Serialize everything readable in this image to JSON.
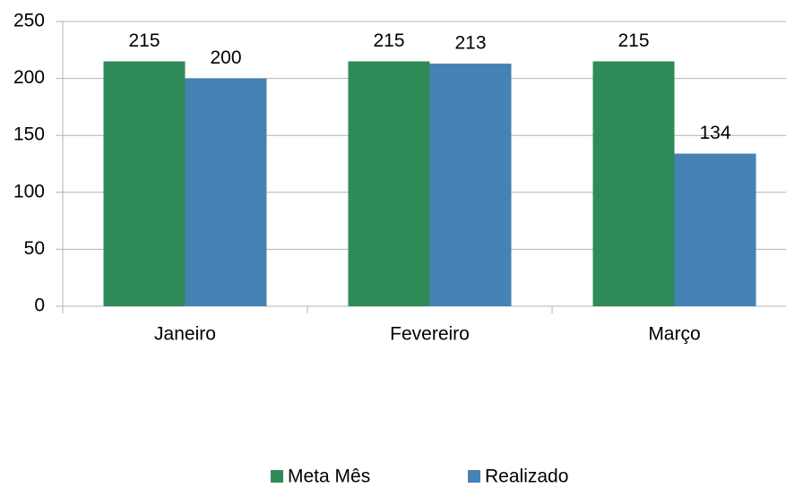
{
  "chart_data": {
    "type": "bar",
    "categories": [
      "Janeiro",
      "Fevereiro",
      "Março"
    ],
    "series": [
      {
        "name": "Meta Mês",
        "color": "#2e8b57",
        "values": [
          215,
          215,
          215
        ]
      },
      {
        "name": "Realizado",
        "color": "#4682b4",
        "values": [
          200,
          213,
          134
        ]
      }
    ],
    "ylim": [
      0,
      250
    ],
    "yticks": [
      0,
      50,
      100,
      150,
      200,
      250
    ],
    "grid": true,
    "legend": "bottom"
  }
}
